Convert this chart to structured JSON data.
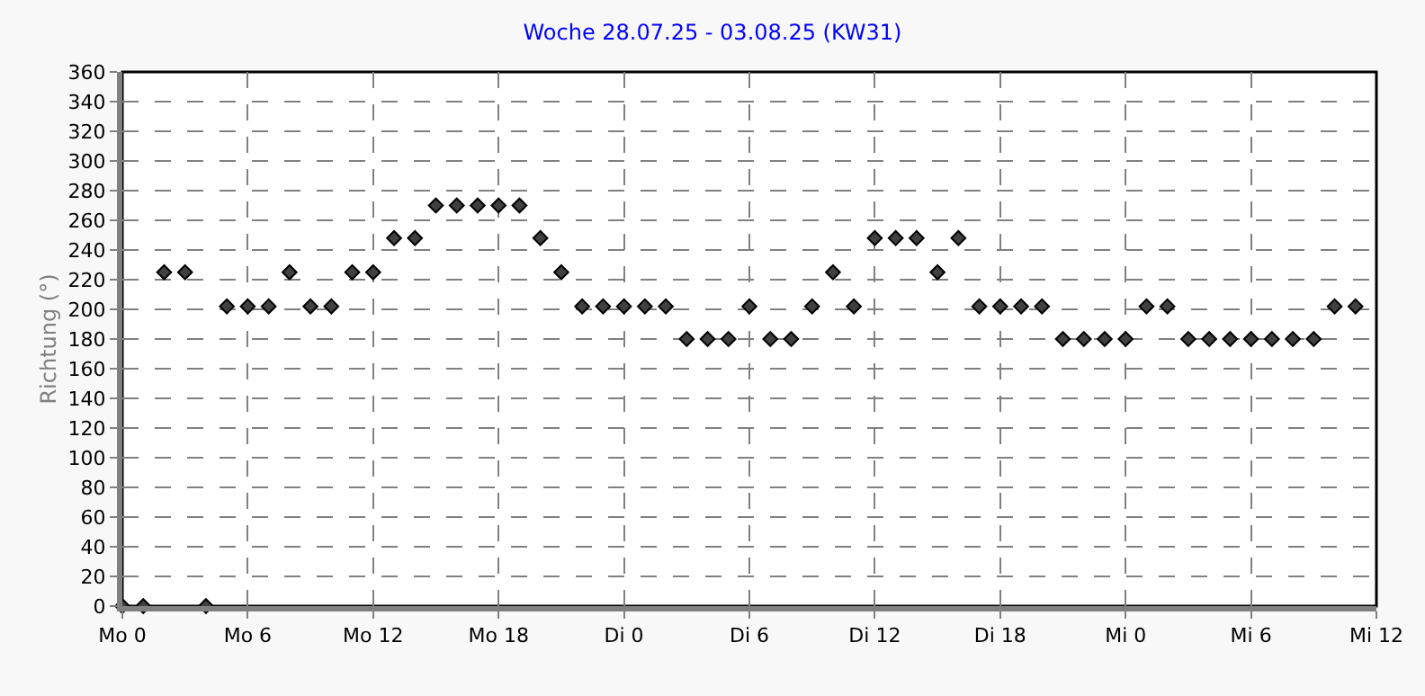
{
  "chart_data": {
    "type": "scatter",
    "title": "Woche 28.07.25 - 03.08.25 (KW31)",
    "ylabel": "Richtung (°)",
    "x": [
      "--07-28T00:00",
      "--07-28T01:00",
      "--07-28T02:00",
      "--07-28T03:00",
      "--07-28T04:00",
      "--07-28T05:00",
      "--07-28T06:00",
      "--07-28T07:00",
      "--07-28T08:00",
      "--07-28T09:00",
      "--07-28T10:00",
      "--07-28T11:00",
      "--07-28T12:00",
      "--07-28T13:00",
      "--07-28T14:00",
      "--07-28T15:00",
      "--07-28T16:00",
      "--07-28T17:00",
      "--07-28T18:00",
      "--07-28T19:00",
      "--07-28T20:00",
      "--07-28T21:00",
      "--07-28T22:00",
      "--07-28T23:00",
      "--07-29T00:00",
      "--07-29T01:00",
      "--07-29T02:00",
      "--07-29T03:00",
      "--07-29T04:00",
      "--07-29T05:00",
      "--07-29T06:00",
      "--07-29T07:00",
      "--07-29T08:00",
      "--07-29T09:00",
      "--07-29T10:00",
      "--07-29T11:00",
      "--07-29T12:00",
      "--07-29T13:00",
      "--07-29T14:00",
      "--07-29T15:00",
      "--07-29T16:00",
      "--07-29T17:00",
      "--07-29T18:00",
      "--07-29T19:00",
      "--07-29T20:00",
      "--07-29T21:00",
      "--07-29T22:00",
      "--07-29T23:00",
      "--07-30T00:00",
      "--07-30T01:00",
      "--07-30T02:00",
      "--07-30T03:00",
      "--07-30T04:00",
      "--07-30T05:00",
      "--07-30T06:00",
      "--07-30T07:00",
      "--07-30T08:00",
      "--07-30T09:00",
      "--07-30T10:00",
      "--07-30T11:00"
    ],
    "series": [
      {
        "color": "#404040",
        "values": [
          0,
          0,
          225,
          225,
          0,
          202,
          202,
          202,
          225,
          202,
          202,
          225,
          225,
          248,
          248,
          270,
          270,
          270,
          270,
          270,
          248,
          225,
          202,
          202,
          202,
          202,
          202,
          180,
          180,
          180,
          202,
          180,
          180,
          202,
          225,
          202,
          248,
          248,
          248,
          225,
          248,
          202,
          202,
          202,
          202,
          180,
          180,
          180,
          180,
          202,
          202,
          180,
          180,
          180,
          180,
          180,
          180,
          180,
          202,
          202
        ]
      }
    ],
    "xlim": [
      "--07-28T00:00",
      "--07-30T12:00"
    ],
    "xticks": [
      {
        "value": "--07-28T00:00",
        "label": "Mo 0"
      },
      {
        "value": "--07-28T06:00",
        "label": "Mo 6"
      },
      {
        "value": "--07-28T12:00",
        "label": "Mo 12"
      },
      {
        "value": "--07-28T18:00",
        "label": "Mo 18"
      },
      {
        "value": "--07-29T00:00",
        "label": "Di 0"
      },
      {
        "value": "--07-29T06:00",
        "label": "Di 6"
      },
      {
        "value": "--07-29T12:00",
        "label": "Di 12"
      },
      {
        "value": "--07-29T18:00",
        "label": "Di 18"
      },
      {
        "value": "--07-30T00:00",
        "label": "Mi 0"
      },
      {
        "value": "--07-30T06:00",
        "label": "Mi 6"
      },
      {
        "value": "--07-30T12:00",
        "label": "Mi 12"
      }
    ],
    "ylim": [
      0,
      360
    ],
    "yticks": [
      0,
      20,
      40,
      60,
      80,
      100,
      120,
      140,
      160,
      180,
      200,
      220,
      240,
      260,
      280,
      300,
      320,
      340,
      360
    ],
    "grid": true,
    "marker": "diamond"
  }
}
